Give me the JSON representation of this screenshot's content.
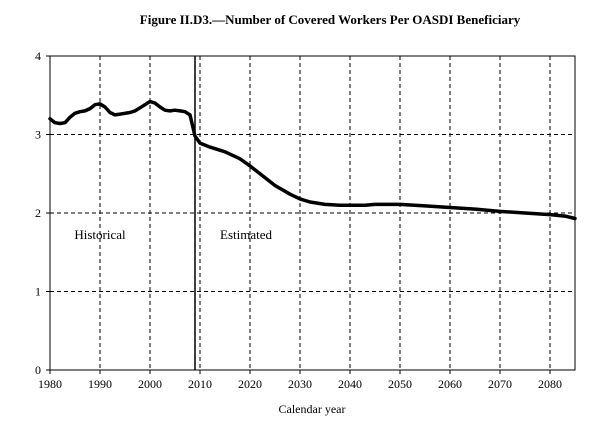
{
  "chart_data": {
    "type": "line",
    "title": "Figure II.D3.—Number of Covered Workers Per OASDI Beneficiary",
    "xlabel": "Calendar year",
    "ylabel": "",
    "xlim": [
      1980,
      2085
    ],
    "ylim": [
      0,
      4
    ],
    "x_ticks": [
      1980,
      1990,
      2000,
      2010,
      2020,
      2030,
      2040,
      2050,
      2060,
      2070,
      2080
    ],
    "y_ticks": [
      0,
      1,
      2,
      3,
      4
    ],
    "grid": true,
    "divider_year": 2009,
    "annotations": [
      {
        "text": "Historical",
        "x": 1990,
        "y": 1.67
      },
      {
        "text": "Estimated",
        "x": 2014,
        "y": 1.67
      }
    ],
    "series": [
      {
        "x": [
          1980,
          1981,
          1982,
          1983,
          1984,
          1985,
          1986,
          1987,
          1988,
          1989,
          1990,
          1991,
          1992,
          1993,
          1994,
          1995,
          1996,
          1997,
          1998,
          1999,
          2000,
          2001,
          2002,
          2003,
          2004,
          2005,
          2006,
          2007,
          2008,
          2009,
          2010,
          2012,
          2015,
          2018,
          2020,
          2022,
          2025,
          2028,
          2030,
          2032,
          2035,
          2038,
          2040,
          2043,
          2045,
          2048,
          2050,
          2055,
          2060,
          2065,
          2070,
          2075,
          2080,
          2083,
          2085
        ],
        "y": [
          3.2,
          3.15,
          3.14,
          3.15,
          3.22,
          3.27,
          3.29,
          3.3,
          3.33,
          3.38,
          3.39,
          3.35,
          3.28,
          3.25,
          3.26,
          3.27,
          3.28,
          3.3,
          3.34,
          3.38,
          3.42,
          3.4,
          3.35,
          3.31,
          3.3,
          3.31,
          3.3,
          3.29,
          3.25,
          2.98,
          2.89,
          2.84,
          2.78,
          2.69,
          2.6,
          2.5,
          2.35,
          2.24,
          2.18,
          2.14,
          2.11,
          2.1,
          2.1,
          2.1,
          2.11,
          2.11,
          2.11,
          2.09,
          2.07,
          2.05,
          2.02,
          2.0,
          1.98,
          1.96,
          1.93
        ]
      }
    ]
  }
}
